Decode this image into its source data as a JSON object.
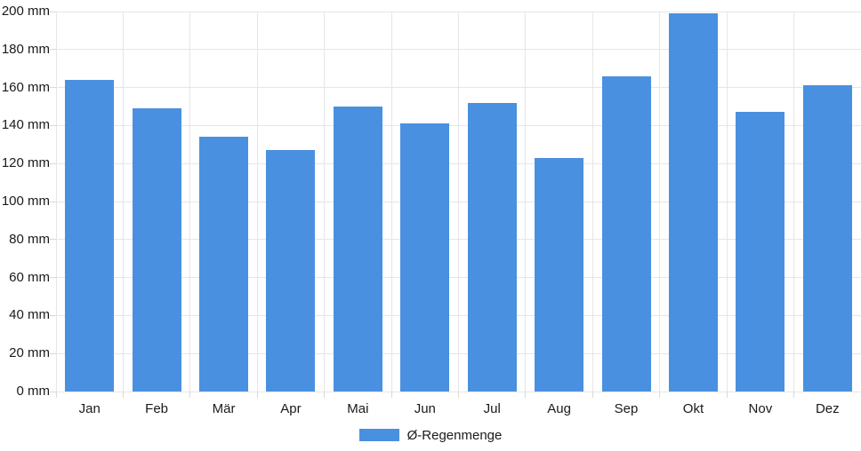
{
  "chart_data": {
    "type": "bar",
    "title": "",
    "xlabel": "",
    "ylabel": "",
    "unit": "mm",
    "categories": [
      "Jan",
      "Feb",
      "Mär",
      "Apr",
      "Mai",
      "Jun",
      "Jul",
      "Aug",
      "Sep",
      "Okt",
      "Nov",
      "Dez"
    ],
    "series": [
      {
        "name": "Ø-Regenmenge",
        "color": "#4a90e0",
        "values": [
          164,
          149,
          134,
          127,
          150,
          141,
          152,
          123,
          166,
          199,
          147,
          161
        ]
      }
    ],
    "ylim": [
      0,
      200
    ],
    "ytick_step": 20,
    "ytick_labels": [
      "0 mm",
      "20 mm",
      "40 mm",
      "60 mm",
      "80 mm",
      "100 mm",
      "120 mm",
      "140 mm",
      "160 mm",
      "180 mm",
      "200 mm"
    ],
    "grid": true,
    "legend_position": "bottom"
  },
  "legend": {
    "label": "Ø-Regenmenge",
    "swatch_color": "#4a90e0"
  },
  "colors": {
    "background": "#ffffff",
    "bar": "#4a90e0",
    "grid": "#e6e6e6",
    "tick": "#d9d9d9",
    "text": "#1a1a1a"
  }
}
